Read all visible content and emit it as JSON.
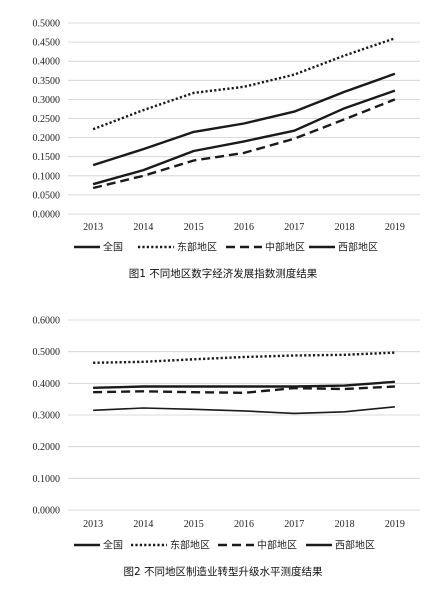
{
  "chart_data": [
    {
      "type": "line",
      "caption": "图1   不同地区数字经济发展指数测度结果",
      "categories": [
        "2013",
        "2014",
        "2015",
        "2016",
        "2017",
        "2018",
        "2019"
      ],
      "yticks": [
        "0.0000",
        "0.0500",
        "0.1000",
        "0.1500",
        "0.2000",
        "0.2500",
        "0.3000",
        "0.3500",
        "0.4000",
        "0.4500",
        "0.5000"
      ],
      "ylim": [
        0,
        0.5
      ],
      "grid": true,
      "legend_position": "bottom",
      "series": [
        {
          "name": "全国",
          "style": "solid",
          "width": 2.4,
          "values": [
            0.128,
            0.17,
            0.215,
            0.237,
            0.268,
            0.32,
            0.367
          ]
        },
        {
          "name": "东部地区",
          "style": "dotted",
          "width": 2.4,
          "values": [
            0.222,
            0.272,
            0.317,
            0.333,
            0.365,
            0.415,
            0.46
          ]
        },
        {
          "name": "中部地区",
          "style": "dashed",
          "width": 2.4,
          "values": [
            0.068,
            0.1,
            0.14,
            0.16,
            0.197,
            0.248,
            0.3
          ]
        },
        {
          "name": "西部地区",
          "style": "solid",
          "width": 2.4,
          "values": [
            0.078,
            0.115,
            0.165,
            0.19,
            0.218,
            0.277,
            0.323
          ]
        }
      ]
    },
    {
      "type": "line",
      "caption": "图2   不同地区制造业转型升级水平测度结果",
      "categories": [
        "2013",
        "2014",
        "2015",
        "2016",
        "2017",
        "2018",
        "2019"
      ],
      "yticks": [
        "0.0000",
        "0.1000",
        "0.2000",
        "0.3000",
        "0.4000",
        "0.5000",
        "0.6000"
      ],
      "ylim": [
        0,
        0.6
      ],
      "grid": true,
      "legend_position": "bottom",
      "series": [
        {
          "name": "全国",
          "style": "solid",
          "width": 2.4,
          "values": [
            0.386,
            0.39,
            0.39,
            0.39,
            0.39,
            0.393,
            0.405
          ]
        },
        {
          "name": "东部地区",
          "style": "dotted",
          "width": 2.4,
          "values": [
            0.465,
            0.468,
            0.476,
            0.483,
            0.488,
            0.49,
            0.497
          ]
        },
        {
          "name": "中部地区",
          "style": "dashed",
          "width": 2.4,
          "values": [
            0.372,
            0.375,
            0.372,
            0.37,
            0.385,
            0.382,
            0.39
          ]
        },
        {
          "name": "西部地区",
          "style": "solid",
          "width": 1.6,
          "values": [
            0.315,
            0.322,
            0.318,
            0.313,
            0.305,
            0.31,
            0.326
          ]
        }
      ]
    }
  ]
}
